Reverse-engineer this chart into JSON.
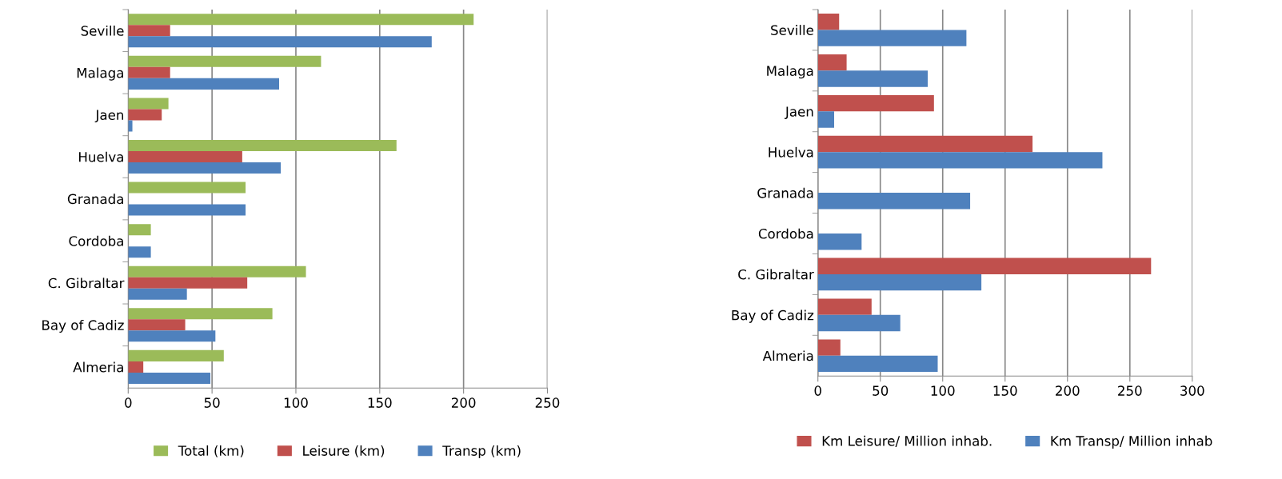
{
  "chart_data": [
    {
      "type": "bar",
      "orientation": "horizontal",
      "categories": [
        "Seville",
        "Malaga",
        "Jaen",
        "Huelva",
        "Granada",
        "Cordoba",
        "C. Gibraltar",
        "Bay of Cadiz",
        "Almeria"
      ],
      "series": [
        {
          "name": "Total (km)",
          "color": "#9bbb59",
          "values": [
            206,
            115,
            24,
            160,
            70,
            13.5,
            106,
            86,
            57
          ]
        },
        {
          "name": "Leisure (km)",
          "color": "#c0504d",
          "values": [
            25,
            25,
            20,
            68,
            null,
            null,
            71,
            34,
            9
          ]
        },
        {
          "name": "Transp (km)",
          "color": "#4f81bd",
          "values": [
            181,
            90,
            2.5,
            91,
            70,
            13.5,
            35,
            52,
            49
          ]
        }
      ],
      "xlim": [
        0,
        250
      ],
      "xticks": [
        0,
        50,
        100,
        150,
        200,
        250
      ],
      "grid": "x",
      "legend": "bottom"
    },
    {
      "type": "bar",
      "orientation": "horizontal",
      "categories": [
        "Seville",
        "Malaga",
        "Jaen",
        "Huelva",
        "Granada",
        "Cordoba",
        "C. Gibraltar",
        "Bay of Cadiz",
        "Almeria"
      ],
      "series": [
        {
          "name": "Km Leisure/ Million inhab.",
          "color": "#c0504d",
          "values": [
            17,
            23,
            93,
            172,
            null,
            null,
            267,
            43,
            18
          ]
        },
        {
          "name": "Km Transp/ Million inhab",
          "color": "#4f81bd",
          "values": [
            119,
            88,
            13,
            228,
            122,
            35,
            131,
            66,
            96
          ]
        }
      ],
      "xlim": [
        0,
        300
      ],
      "xticks": [
        0,
        50,
        100,
        150,
        200,
        250,
        300
      ],
      "grid": "x",
      "legend": "bottom"
    }
  ]
}
